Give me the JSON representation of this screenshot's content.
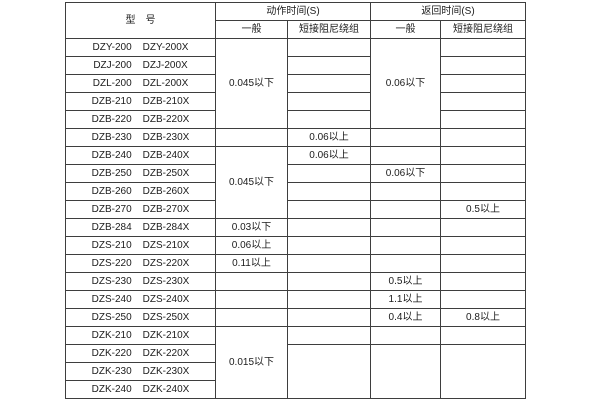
{
  "colors": {
    "background": "#ffffff",
    "border": "#3e3e3e",
    "text": "#1b1b1b"
  },
  "table": {
    "header": {
      "model": "型　号",
      "action_time": "动作时间(S)",
      "return_time": "返回时间(S)",
      "general": "一般",
      "damping": "短接阻尼绕组"
    },
    "rows": [
      {
        "model": [
          "DZY-200",
          "DZY-200X"
        ],
        "cells": [
          {
            "text": "0.045以下",
            "rowspan": 5
          },
          {
            "text": ""
          },
          {
            "text": "0.06以下",
            "rowspan": 5
          },
          {
            "text": ""
          }
        ]
      },
      {
        "model": [
          "DZJ-200",
          "DZJ-200X"
        ],
        "cells": [
          null,
          {
            "text": ""
          },
          null,
          {
            "text": ""
          }
        ]
      },
      {
        "model": [
          "DZL-200",
          "DZL-200X"
        ],
        "cells": [
          null,
          {
            "text": ""
          },
          null,
          {
            "text": ""
          }
        ]
      },
      {
        "model": [
          "DZB-210",
          "DZB-210X"
        ],
        "cells": [
          null,
          {
            "text": ""
          },
          null,
          {
            "text": ""
          }
        ]
      },
      {
        "model": [
          "DZB-220",
          "DZB-220X"
        ],
        "cells": [
          null,
          {
            "text": ""
          },
          null,
          {
            "text": ""
          }
        ]
      },
      {
        "model": [
          "DZB-230",
          "DZB-230X"
        ],
        "cells": [
          {
            "text": ""
          },
          {
            "text": "0.06以上"
          },
          {
            "text": ""
          },
          {
            "text": ""
          }
        ]
      },
      {
        "model": [
          "DZB-240",
          "DZB-240X"
        ],
        "cells": [
          {
            "text": "0.045以下",
            "rowspan": 4
          },
          {
            "text": "0.06以上"
          },
          {
            "text": ""
          },
          {
            "text": ""
          }
        ]
      },
      {
        "model": [
          "DZB-250",
          "DZB-250X"
        ],
        "cells": [
          null,
          {
            "text": ""
          },
          {
            "text": "0.06以下"
          },
          {
            "text": ""
          }
        ]
      },
      {
        "model": [
          "DZB-260",
          "DZB-260X"
        ],
        "cells": [
          null,
          {
            "text": ""
          },
          {
            "text": ""
          },
          {
            "text": ""
          }
        ]
      },
      {
        "model": [
          "DZB-270",
          "DZB-270X"
        ],
        "cells": [
          null,
          {
            "text": ""
          },
          {
            "text": ""
          },
          {
            "text": "0.5以上"
          }
        ]
      },
      {
        "model": [
          "DZB-284",
          "DZB-284X"
        ],
        "cells": [
          {
            "text": "0.03以下"
          },
          {
            "text": ""
          },
          {
            "text": ""
          },
          {
            "text": ""
          }
        ]
      },
      {
        "model": [
          "DZS-210",
          "DZS-210X"
        ],
        "cells": [
          {
            "text": "0.06以上"
          },
          {
            "text": ""
          },
          {
            "text": ""
          },
          {
            "text": ""
          }
        ]
      },
      {
        "model": [
          "DZS-220",
          "DZS-220X"
        ],
        "cells": [
          {
            "text": "0.11以上"
          },
          {
            "text": ""
          },
          {
            "text": ""
          },
          {
            "text": ""
          }
        ]
      },
      {
        "model": [
          "DZS-230",
          "DZS-230X"
        ],
        "cells": [
          {
            "text": ""
          },
          {
            "text": ""
          },
          {
            "text": "0.5以上"
          },
          {
            "text": ""
          }
        ]
      },
      {
        "model": [
          "DZS-240",
          "DZS-240X"
        ],
        "cells": [
          {
            "text": ""
          },
          {
            "text": ""
          },
          {
            "text": "1.1以上"
          },
          {
            "text": ""
          }
        ]
      },
      {
        "model": [
          "DZS-250",
          "DZS-250X"
        ],
        "cells": [
          {
            "text": ""
          },
          {
            "text": ""
          },
          {
            "text": "0.4以上"
          },
          {
            "text": "0.8以上"
          }
        ]
      },
      {
        "model": [
          "DZK-210",
          "DZK-210X"
        ],
        "cells": [
          {
            "text": "0.015以下",
            "rowspan": 4
          },
          {
            "text": ""
          },
          {
            "text": ""
          },
          {
            "text": ""
          }
        ]
      },
      {
        "model": [
          "DZK-220",
          "DZK-220X"
        ],
        "cells": [
          null,
          {
            "text": "",
            "rowspan": 3
          },
          {
            "text": "",
            "rowspan": 3
          },
          {
            "text": "",
            "rowspan": 3
          }
        ]
      },
      {
        "model": [
          "DZK-230",
          "DZK-230X"
        ],
        "cells": [
          null,
          null,
          null,
          null
        ]
      },
      {
        "model": [
          "DZK-240",
          "DZK-240X"
        ],
        "cells": [
          null,
          null,
          null,
          null
        ]
      }
    ]
  }
}
